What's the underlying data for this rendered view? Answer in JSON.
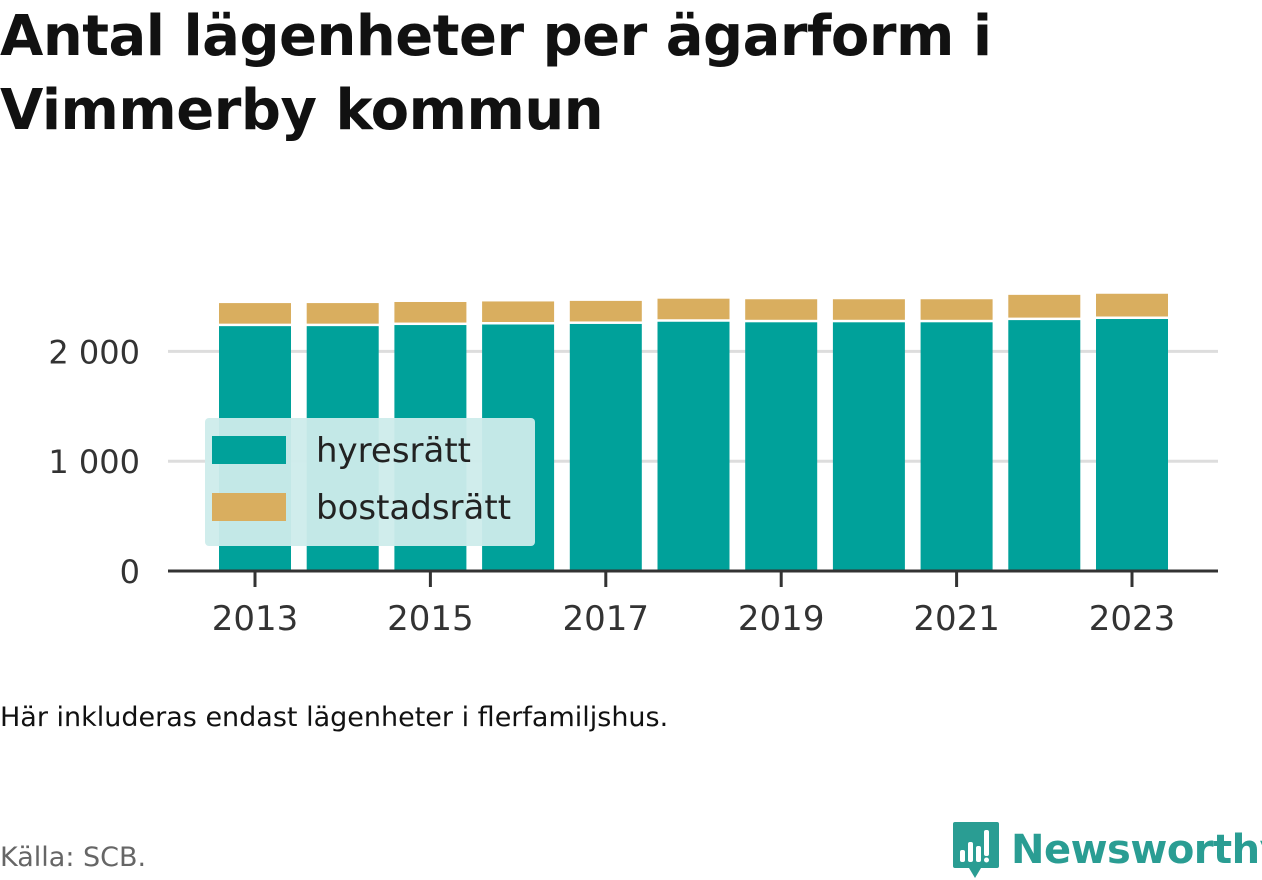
{
  "title": "Antal lägenheter per ägarform i Vimmerby kommun",
  "note": "Här inkluderas endast lägenheter i flerfamiljshus.",
  "source": "Källa: SCB.",
  "brand": {
    "name": "Newsworthy",
    "icon": "newsworthy-logo-icon",
    "color": "#2a9d93"
  },
  "colors": {
    "hyresratt": "#00a19a",
    "bostadsratt": "#d9ae5f",
    "legend_bg": "#cdeceb",
    "grid": "#dddddd",
    "axis": "#333333"
  },
  "chart_data": {
    "type": "bar",
    "stacked": true,
    "categories": [
      "2013",
      "2014",
      "2015",
      "2016",
      "2017",
      "2018",
      "2019",
      "2020",
      "2021",
      "2022",
      "2023"
    ],
    "x_tick_labels": [
      "2013",
      "2015",
      "2017",
      "2019",
      "2021",
      "2023"
    ],
    "series": [
      {
        "name": "hyresrätt",
        "color": "#00a19a",
        "values": [
          2230,
          2230,
          2240,
          2245,
          2250,
          2270,
          2265,
          2265,
          2265,
          2285,
          2295
        ]
      },
      {
        "name": "bostadsrätt",
        "color": "#d9ae5f",
        "values": [
          210,
          210,
          210,
          210,
          210,
          210,
          210,
          210,
          210,
          230,
          230
        ]
      }
    ],
    "y_ticks": [
      0,
      1000,
      2000
    ],
    "y_tick_labels": [
      "0",
      "1 000",
      "2 000"
    ],
    "ylim": [
      0,
      2750
    ],
    "grid": true,
    "legend_position": "inside-left"
  }
}
